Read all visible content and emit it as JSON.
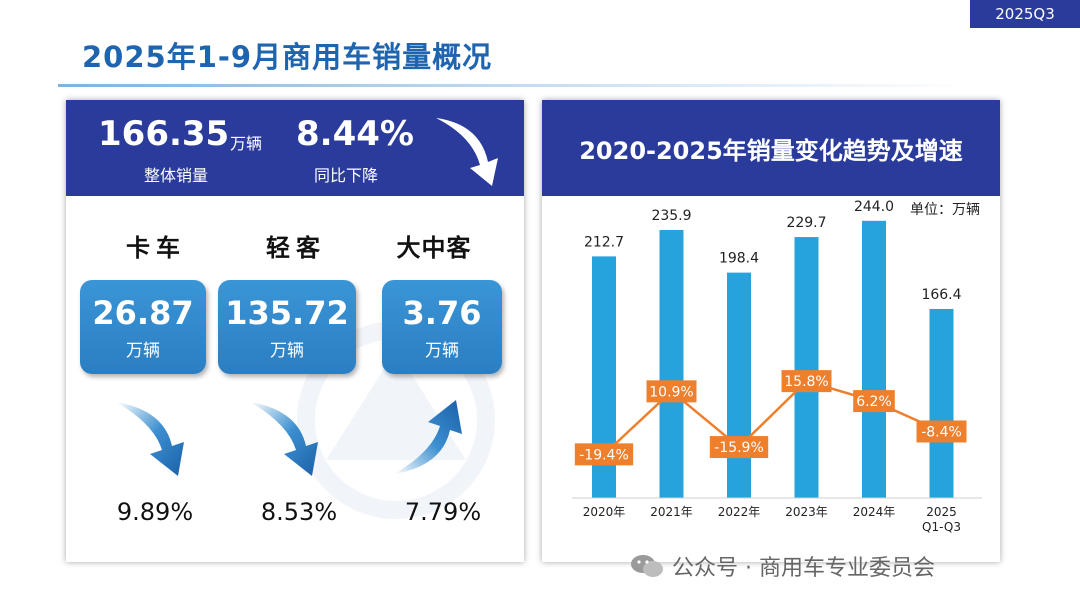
{
  "tag": "2025Q3",
  "title": "2025年1-9月商用车销量概况",
  "summary": {
    "total_value": "166.35",
    "total_unit": "万辆",
    "total_caption": "整体销量",
    "change_value": "8.44%",
    "change_caption": "同比下降"
  },
  "categories": [
    {
      "name": "卡车",
      "value": "26.87",
      "unit": "万辆",
      "pct": "9.89%",
      "direction": "down"
    },
    {
      "name": "轻客",
      "value": "135.72",
      "unit": "万辆",
      "pct": "8.53%",
      "direction": "down"
    },
    {
      "name": "大中客",
      "value": "3.76",
      "unit": "万辆",
      "pct": "7.79%",
      "direction": "up"
    }
  ],
  "chart_title": "2020-2025年销量变化趋势及增速",
  "footer": "公众号 · 商用车专业委员会",
  "colors": {
    "navy": "#2a3b9c",
    "bar": "#27a3dc",
    "line": "#ee7f2d",
    "title_blue": "#1f64ae"
  },
  "chart_data": {
    "type": "bar",
    "title": "2020-2025年销量变化趋势及增速",
    "unit_label": "单位：万辆",
    "categories": [
      "2020年",
      "2021年",
      "2022年",
      "2023年",
      "2024年",
      "2025\nQ1-Q3"
    ],
    "category_lines": [
      [
        "2020年"
      ],
      [
        "2021年"
      ],
      [
        "2022年"
      ],
      [
        "2023年"
      ],
      [
        "2024年"
      ],
      [
        "2025",
        "Q1-Q3"
      ]
    ],
    "series": [
      {
        "name": "销量",
        "type": "bar",
        "values": [
          212.7,
          235.9,
          198.4,
          229.7,
          244.0,
          166.4
        ],
        "labels": [
          "212.7",
          "235.9",
          "198.4",
          "229.7",
          "244.0",
          "166.4"
        ]
      },
      {
        "name": "增速",
        "type": "line",
        "values": [
          -19.4,
          10.9,
          -15.9,
          15.8,
          6.2,
          -8.4
        ],
        "labels": [
          "-19.4%",
          "10.9%",
          "-15.9%",
          "15.8%",
          "6.2%",
          "-8.4%"
        ]
      }
    ],
    "ylim": [
      0,
      250
    ],
    "growth_range": [
      -25,
      25
    ]
  }
}
